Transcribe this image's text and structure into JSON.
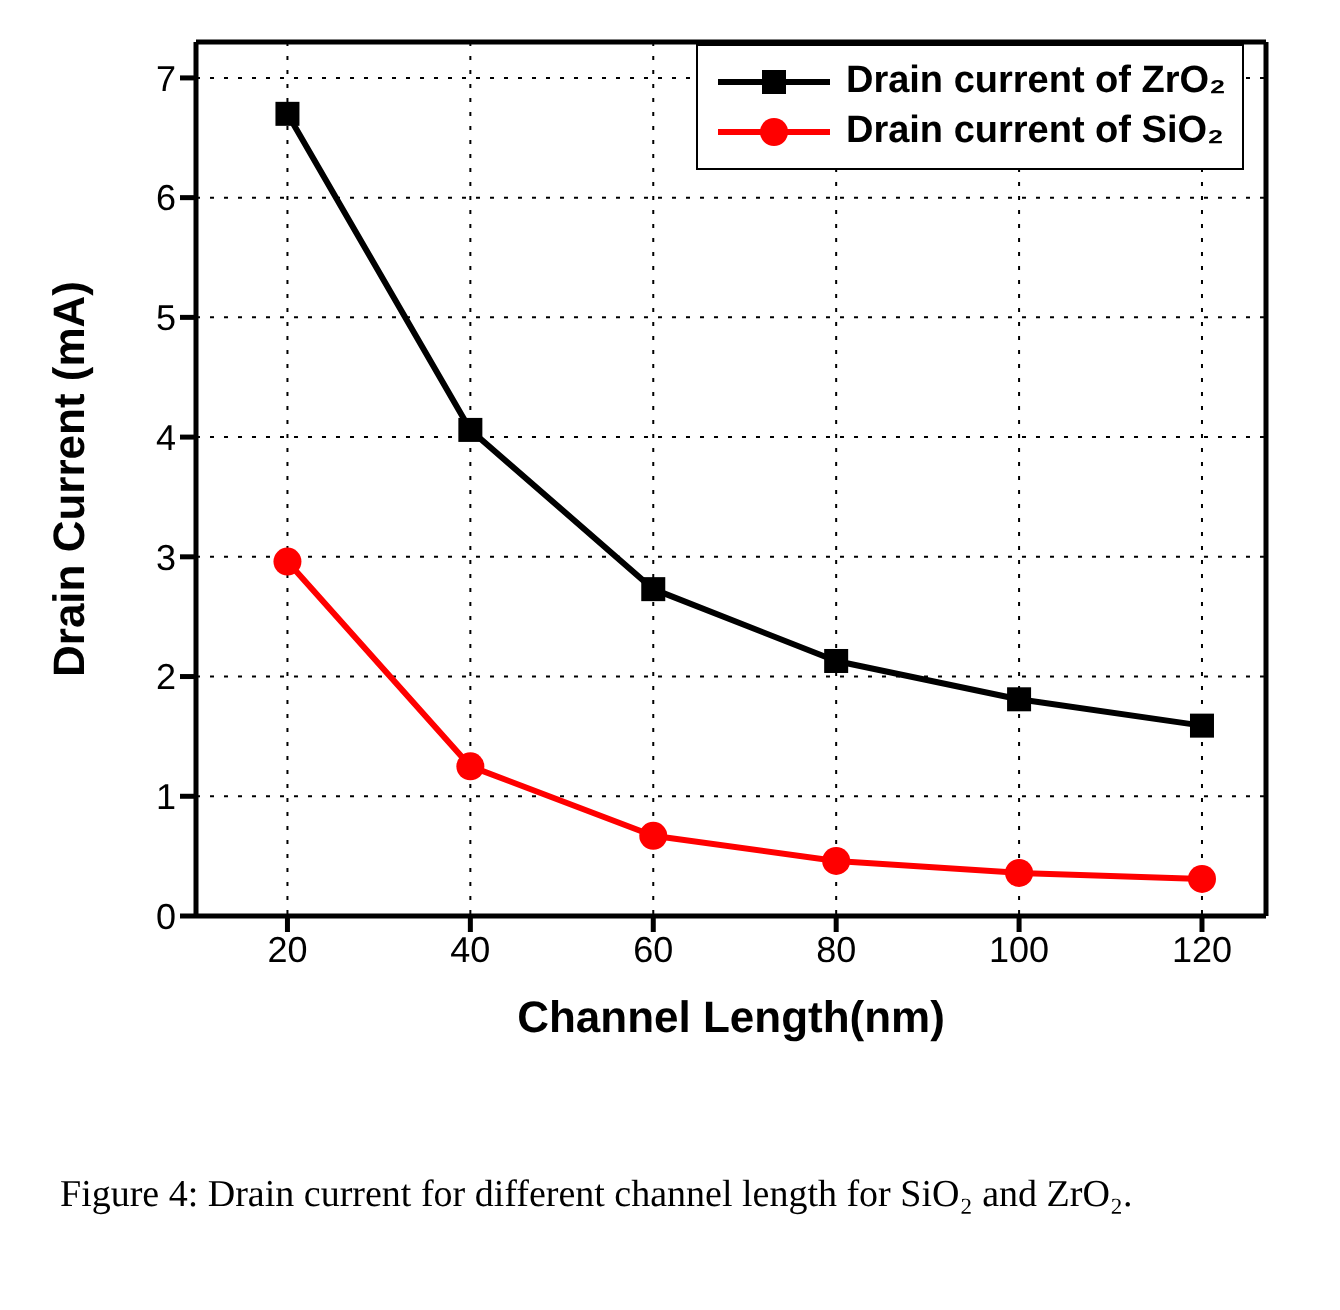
{
  "chart_data": {
    "type": "line",
    "xlabel": "Channel Length(nm)",
    "ylabel": "Drain Current (mA)",
    "x": [
      20,
      40,
      60,
      80,
      100,
      120
    ],
    "series": [
      {
        "name": "Drain current of ZrO₂",
        "color": "#000000",
        "marker": "square",
        "values": [
          6.7,
          4.06,
          2.73,
          2.13,
          1.81,
          1.59
        ]
      },
      {
        "name": "Drain current of SiO₂",
        "color": "#ff0000",
        "marker": "circle",
        "values": [
          2.96,
          1.25,
          0.67,
          0.46,
          0.36,
          0.31
        ]
      }
    ],
    "xlim": [
      10,
      127
    ],
    "xticks": [
      20,
      40,
      60,
      80,
      100,
      120
    ],
    "ylim": [
      0,
      7.3
    ],
    "yticks": [
      0,
      1,
      2,
      3,
      4,
      5,
      6,
      7
    ],
    "grid": true,
    "legend": "top right",
    "line_style": "solid",
    "annotations": [
      "Figure 4: Drain current for different channel length for SiO₂ and ZrO₂."
    ]
  }
}
